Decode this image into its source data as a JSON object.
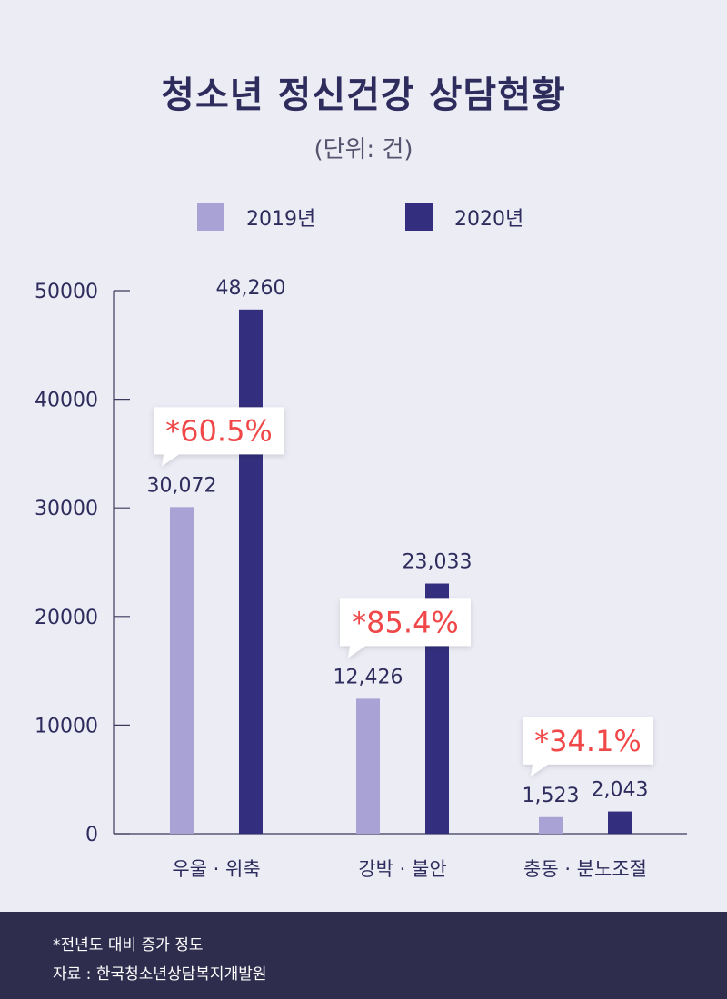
{
  "header": {
    "title": "청소년 정신건강 상담현황",
    "unit": "(단위: 건)"
  },
  "legend": {
    "items": [
      {
        "label": "2019년",
        "color": "#a8a3d4"
      },
      {
        "label": "2020년",
        "color": "#332f7e"
      }
    ]
  },
  "footer": {
    "note": "*전년도 대비 증가 정도",
    "source": "자료 : 한국청소년상담복지개발원"
  },
  "colors": {
    "bar_2019": "#a8a3d4",
    "bar_2020": "#332f7e",
    "percent_text": "#f04848",
    "axis": "#3b3a5c",
    "text": "#2e2c5c"
  },
  "chart_data": {
    "type": "bar",
    "categories": [
      "우울 · 위축",
      "강박 · 불안",
      "충동 · 분노조절"
    ],
    "series": [
      {
        "name": "2019년",
        "values": [
          30072,
          12426,
          1523
        ],
        "labels": [
          "30,072",
          "12,426",
          "1,523"
        ]
      },
      {
        "name": "2020년",
        "values": [
          48260,
          23033,
          2043
        ],
        "labels": [
          "48,260",
          "23,033",
          "2,043"
        ]
      }
    ],
    "annotations": [
      "*60.5%",
      "*85.4%",
      "*34.1%"
    ],
    "yticks": [
      "0",
      "10000",
      "20000",
      "30000",
      "40000",
      "50000"
    ],
    "ylim": [
      0,
      50000
    ],
    "grid": false,
    "legend_position": "top"
  }
}
